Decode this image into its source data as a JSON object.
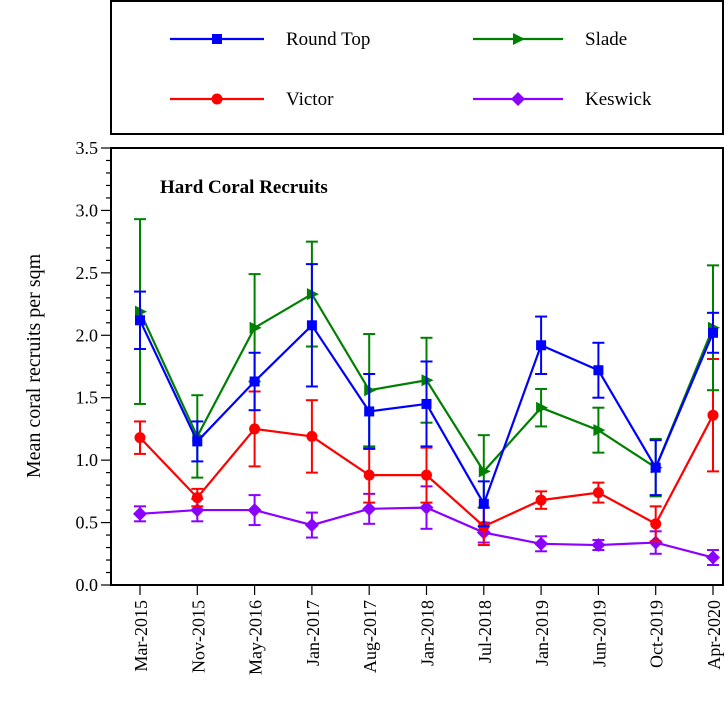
{
  "chart_data": {
    "type": "line",
    "title": "Hard Coral Recruits",
    "xlabel": "",
    "ylabel": "Mean coral recruits per sqm",
    "ylim": [
      0,
      3.5
    ],
    "yticks": [
      "0.0",
      "0.5",
      "1.0",
      "1.5",
      "2.0",
      "2.5",
      "3.0",
      "3.5"
    ],
    "categories": [
      "Mar-2015",
      "Nov-2015",
      "May-2016",
      "Jan-2017",
      "Aug-2017",
      "Jan-2018",
      "Jul-2018",
      "Jan-2019",
      "Jun-2019",
      "Oct-2019",
      "Apr-2020"
    ],
    "legend_position": "top, outside plot",
    "grid": false,
    "series": [
      {
        "name": "Round Top",
        "color": "#0000ff",
        "marker": "square",
        "values": [
          2.12,
          1.15,
          1.63,
          2.08,
          1.39,
          1.45,
          0.65,
          1.92,
          1.72,
          0.94,
          2.02
        ],
        "err_low": [
          1.89,
          0.99,
          1.4,
          1.59,
          1.09,
          1.11,
          0.47,
          1.69,
          1.5,
          0.72,
          1.86
        ],
        "err_high": [
          2.35,
          1.31,
          1.86,
          2.57,
          1.69,
          1.79,
          0.83,
          2.15,
          1.94,
          1.16,
          2.18
        ]
      },
      {
        "name": "Slade",
        "color": "#008000",
        "marker": "triangle-right",
        "values": [
          2.19,
          1.19,
          2.06,
          2.33,
          1.56,
          1.64,
          0.91,
          1.42,
          1.24,
          0.94,
          2.06
        ],
        "err_low": [
          1.45,
          0.86,
          1.63,
          1.91,
          1.11,
          1.3,
          0.62,
          1.27,
          1.06,
          0.71,
          1.56
        ],
        "err_high": [
          2.93,
          1.52,
          2.49,
          2.75,
          2.01,
          1.98,
          1.2,
          1.57,
          1.42,
          1.17,
          2.56
        ]
      },
      {
        "name": "Victor",
        "color": "#ff0000",
        "marker": "circle",
        "values": [
          1.18,
          0.7,
          1.25,
          1.19,
          0.88,
          0.88,
          0.47,
          0.68,
          0.74,
          0.49,
          1.36
        ],
        "err_low": [
          1.05,
          0.63,
          0.95,
          0.9,
          0.66,
          0.66,
          0.32,
          0.61,
          0.66,
          0.35,
          0.91
        ],
        "err_high": [
          1.31,
          0.77,
          1.55,
          1.48,
          1.1,
          1.1,
          0.62,
          0.75,
          0.82,
          0.63,
          1.81
        ]
      },
      {
        "name": "Keswick",
        "color": "#8b00ff",
        "marker": "diamond",
        "values": [
          0.57,
          0.6,
          0.6,
          0.48,
          0.61,
          0.62,
          0.42,
          0.33,
          0.32,
          0.34,
          0.22
        ],
        "err_low": [
          0.51,
          0.51,
          0.48,
          0.38,
          0.49,
          0.45,
          0.34,
          0.27,
          0.28,
          0.25,
          0.16
        ],
        "err_high": [
          0.63,
          0.69,
          0.72,
          0.58,
          0.73,
          0.79,
          0.5,
          0.39,
          0.36,
          0.43,
          0.28
        ]
      }
    ]
  }
}
